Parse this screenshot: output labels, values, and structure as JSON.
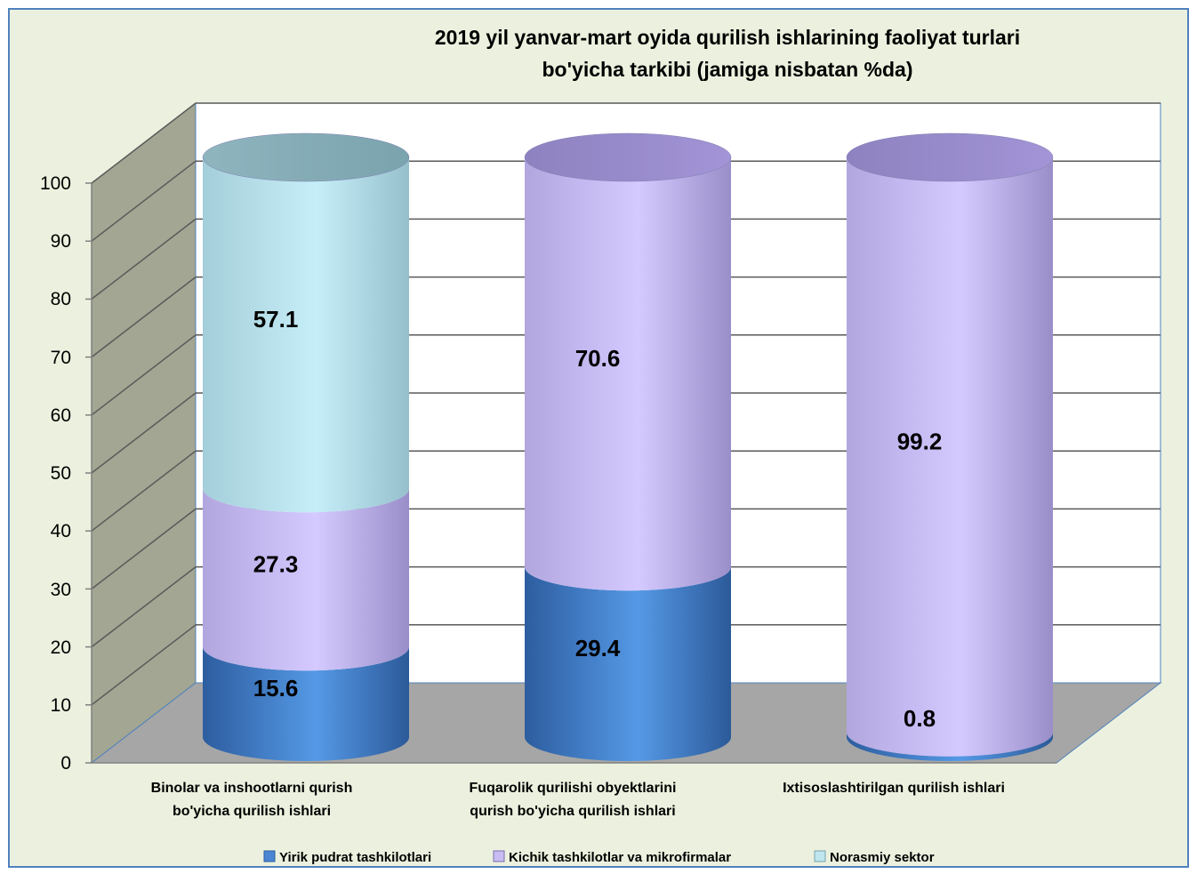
{
  "chart_data": {
    "type": "bar",
    "stacked": true,
    "style": "3d-cylinder",
    "title": "2019 yil yanvar-mart oyida qurilish ishlarining faoliyat turlari bo'yicha tarkibi (jamiga nisbatan %da)",
    "title_lines": [
      "2019 yil yanvar-mart oyida qurilish ishlarining faoliyat turlari",
      "bo'yicha tarkibi (jamiga nisbatan %da)"
    ],
    "categories": [
      [
        "Binolar va inshootlarni qurish",
        "bo'yicha qurilish ishlari"
      ],
      [
        "Fuqarolik qurilishi obyektlarini",
        "qurish bo'yicha qurilish ishlari"
      ],
      [
        "Ixtisoslashtirilgan qurilish ishlari"
      ]
    ],
    "series": [
      {
        "name": "Yirik pudrat tashkilotlari",
        "values": [
          15.6,
          29.4,
          0.8
        ],
        "labels": [
          "15.6",
          "29.4",
          "0.8"
        ],
        "color": "#4a86d4"
      },
      {
        "name": "Kichik tashkilotlar va  mikrofirmalar",
        "values": [
          27.3,
          70.6,
          99.2
        ],
        "labels": [
          "27.3",
          "70.6",
          "99.2"
        ],
        "color": "#c8bcf2"
      },
      {
        "name": "Norasmiy sektor",
        "values": [
          57.1,
          0,
          0
        ],
        "labels": [
          "57.1",
          "",
          ""
        ],
        "color": "#bfe6ef"
      }
    ],
    "yticks": [
      "0",
      "10",
      "20",
      "30",
      "40",
      "50",
      "60",
      "70",
      "80",
      "90",
      "100"
    ],
    "ylim": [
      0,
      100
    ],
    "grid": true,
    "legend": "bottom",
    "colors": {
      "background": "#ebf1de",
      "border": "#4f81bd",
      "wall": "#ffffff",
      "side_wall": "#a3a692",
      "floor": "#a6a6a6",
      "gridline": "#5a5a5a"
    }
  }
}
